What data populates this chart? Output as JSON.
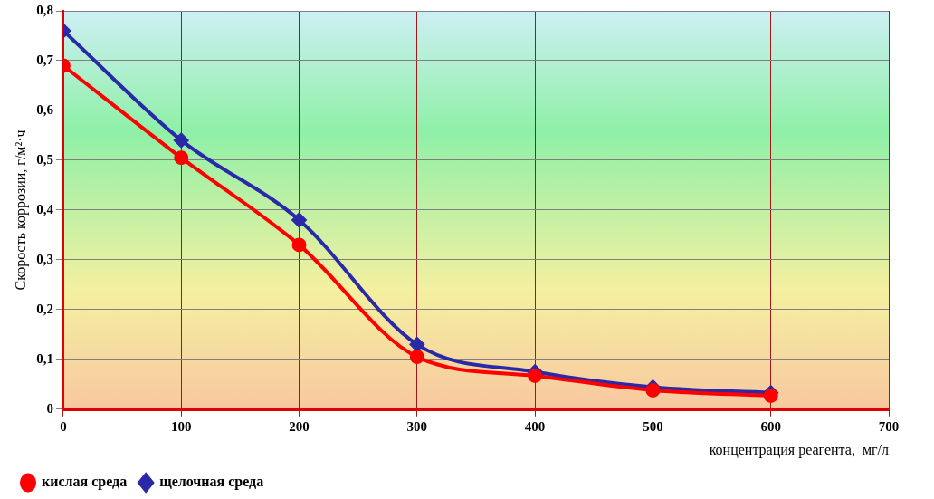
{
  "chart_data": {
    "type": "line",
    "xlabel": "концентрация реагента,  мг/л",
    "ylabel": "Скорость коррозии, г/м²·ч",
    "x": [
      0,
      100,
      200,
      300,
      400,
      500,
      600
    ],
    "xlim": [
      0,
      700
    ],
    "xticks": [
      0,
      100,
      200,
      300,
      400,
      500,
      600,
      700
    ],
    "ylim": [
      0,
      0.8
    ],
    "yticks": [
      {
        "value": 0,
        "label": "0"
      },
      {
        "value": 0.1,
        "label": "0,1"
      },
      {
        "value": 0.2,
        "label": "0,2"
      },
      {
        "value": 0.3,
        "label": "0,3"
      },
      {
        "value": 0.4,
        "label": "0,4"
      },
      {
        "value": 0.5,
        "label": "0,5"
      },
      {
        "value": 0.6,
        "label": "0,6"
      },
      {
        "value": 0.7,
        "label": "0,7"
      },
      {
        "value": 0.8,
        "label": "0,8"
      }
    ],
    "grid": true,
    "legend": "bottom left",
    "series": [
      {
        "name": "щелочная среда",
        "color": "#2a2aa8",
        "marker": "diamond",
        "values": [
          0.76,
          0.54,
          0.38,
          0.13,
          0.075,
          0.044,
          0.033
        ]
      },
      {
        "name": "кислая среда",
        "color": "#ff0000",
        "marker": "circle",
        "values": [
          0.69,
          0.505,
          0.33,
          0.105,
          0.067,
          0.038,
          0.027
        ]
      }
    ]
  }
}
